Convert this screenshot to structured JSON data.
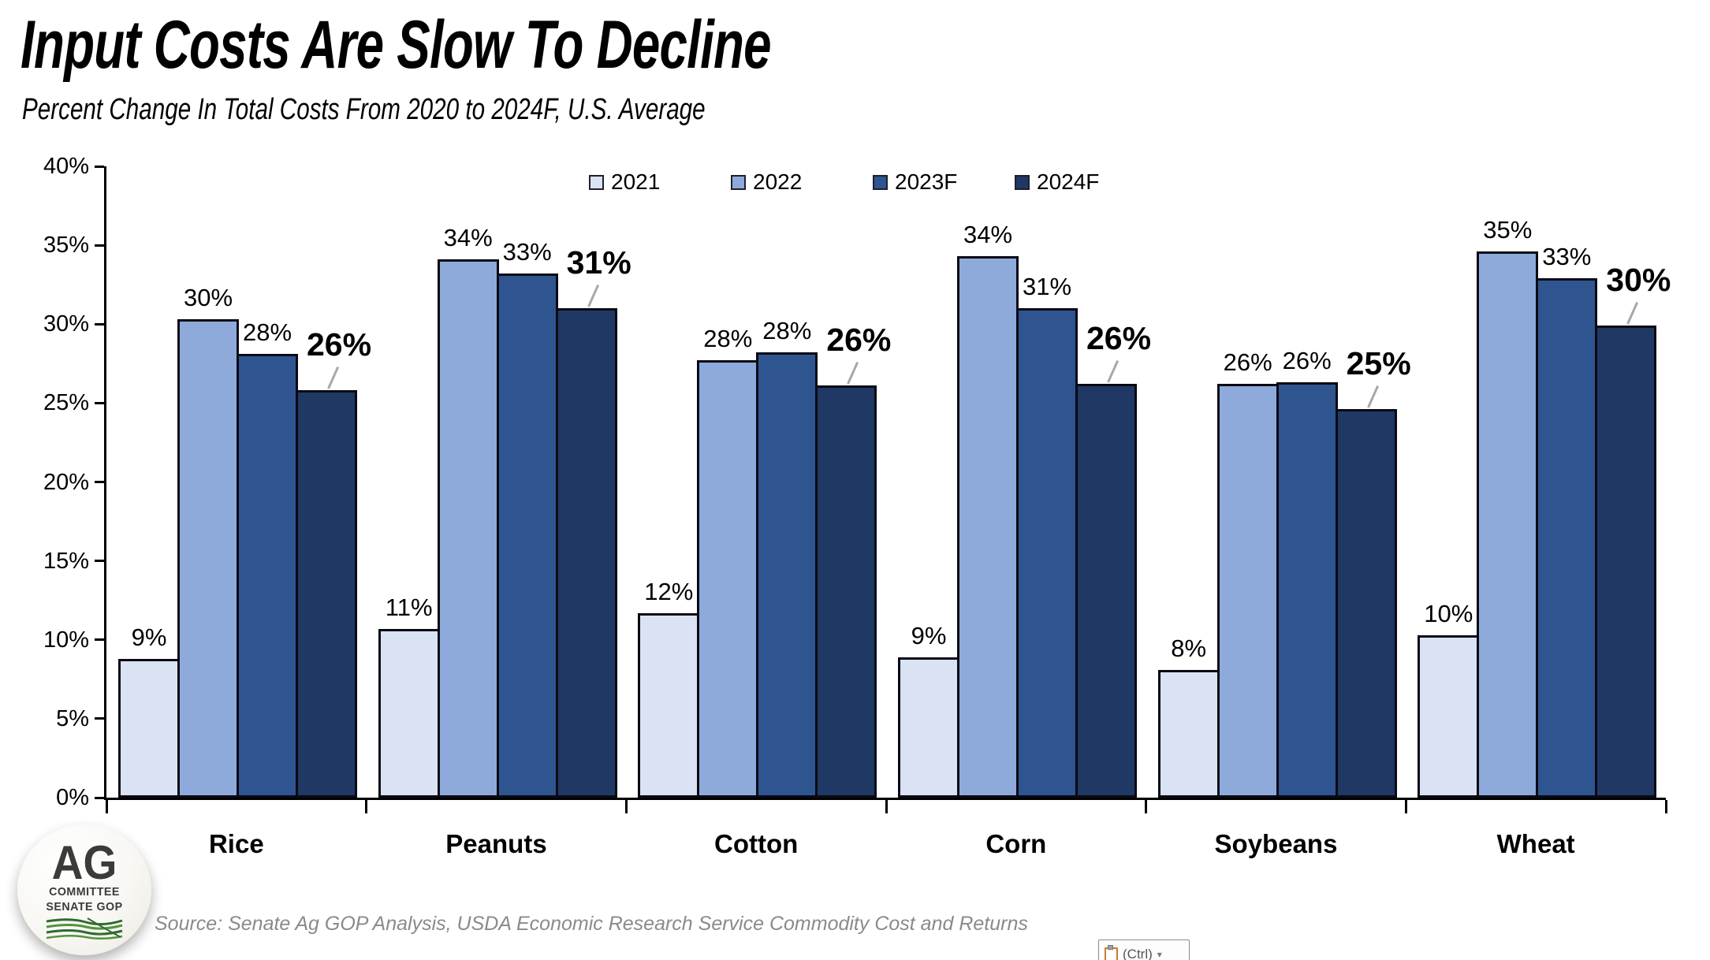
{
  "chart_data": {
    "type": "bar",
    "title": "Input Costs Are Slow To Decline",
    "subtitle": "Percent Change In Total Costs From 2020 to 2024F, U.S. Average",
    "categories": [
      "Rice",
      "Peanuts",
      "Cotton",
      "Corn",
      "Soybeans",
      "Wheat"
    ],
    "series": [
      {
        "name": "2021",
        "color": "#dae3f3",
        "values": [
          8.8,
          10.7,
          11.7,
          8.9,
          8.1,
          10.3
        ],
        "labels": [
          "9%",
          "11%",
          "12%",
          "9%",
          "8%",
          "10%"
        ],
        "emphasized": false
      },
      {
        "name": "2022",
        "color": "#8eaadb",
        "values": [
          30.3,
          34.1,
          27.7,
          34.3,
          26.2,
          34.6
        ],
        "labels": [
          "30%",
          "34%",
          "28%",
          "34%",
          "26%",
          "35%"
        ],
        "emphasized": false
      },
      {
        "name": "2023F",
        "color": "#2f5591",
        "values": [
          28.1,
          33.2,
          28.2,
          31.0,
          26.3,
          32.9
        ],
        "labels": [
          "28%",
          "33%",
          "28%",
          "31%",
          "26%",
          "33%"
        ],
        "emphasized": false
      },
      {
        "name": "2024F",
        "color": "#1f3864",
        "values": [
          25.8,
          31.0,
          26.1,
          26.2,
          24.6,
          29.9
        ],
        "labels": [
          "26%",
          "31%",
          "26%",
          "26%",
          "25%",
          "30%"
        ],
        "emphasized": true
      }
    ],
    "xlabel": "",
    "ylabel": "",
    "ylim": [
      0,
      40
    ],
    "yticks": [
      "0%",
      "5%",
      "10%",
      "15%",
      "20%",
      "25%",
      "30%",
      "35%",
      "40%"
    ],
    "grid": false,
    "legend_position": "top-center",
    "axis_color": "#000000",
    "bar_border_color": "#0a0a14",
    "leader_line_color": "#a8a8a8"
  },
  "source": "Source: Senate Ag GOP Analysis, USDA Economic Research Service Commodity Cost and Returns",
  "logo": {
    "line1": "AG",
    "line2": "COMMITTEE",
    "line3": "SENATE GOP"
  },
  "paste_button": {
    "label": "(Ctrl)",
    "arrow": "▾"
  }
}
